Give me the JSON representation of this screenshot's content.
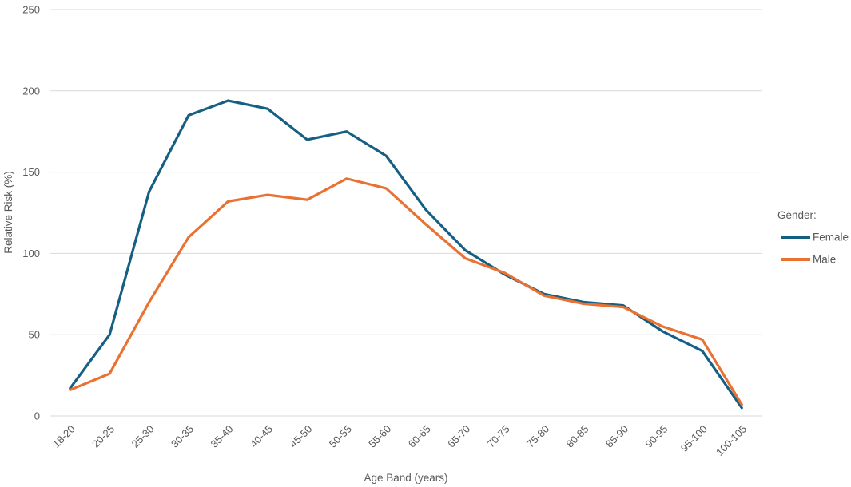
{
  "chart_data": {
    "type": "line",
    "title": "",
    "xlabel": "Age Band (years)",
    "ylabel": "Relative Risk (%)",
    "ylim": [
      0,
      250
    ],
    "yticks": [
      0,
      50,
      100,
      150,
      200,
      250
    ],
    "grid": true,
    "legend_position": "right",
    "legend_title": "Gender:",
    "categories": [
      "18-20",
      "20-25",
      "25-30",
      "30-35",
      "35-40",
      "40-45",
      "45-50",
      "50-55",
      "55-60",
      "60-65",
      "65-70",
      "70-75",
      "75-80",
      "80-85",
      "85-90",
      "90-95",
      "95-100",
      "100-105"
    ],
    "series": [
      {
        "name": "Female",
        "color": "#156082",
        "values": [
          17,
          50,
          138,
          185,
          194,
          189,
          170,
          175,
          160,
          127,
          102,
          87,
          75,
          70,
          68,
          52,
          40,
          5
        ]
      },
      {
        "name": "Male",
        "color": "#E97132",
        "values": [
          16,
          26,
          70,
          110,
          132,
          136,
          133,
          146,
          140,
          118,
          97,
          88,
          74,
          69,
          67,
          55,
          47,
          7
        ]
      }
    ],
    "colors": {
      "gridline": "#d9d9d9",
      "text": "#595959",
      "background": "#ffffff"
    }
  }
}
